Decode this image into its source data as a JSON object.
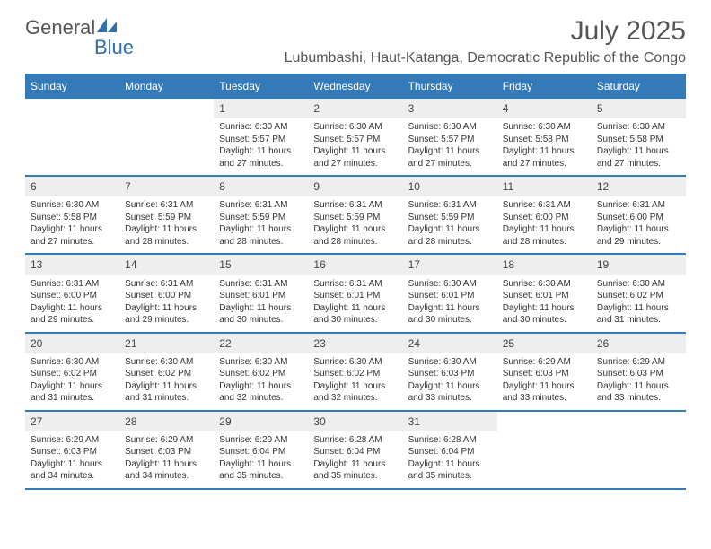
{
  "colors": {
    "header_bar": "#357ab8",
    "day_number_bg": "#eeeeee",
    "text": "#333333",
    "title_text": "#555555",
    "logo_gray": "#555555",
    "logo_blue": "#2f6fad",
    "background": "#ffffff"
  },
  "fonts": {
    "family": "Arial, Helvetica, sans-serif",
    "logo_size": 22,
    "month_title_size": 30,
    "location_size": 16,
    "weekday_size": 12,
    "day_number_size": 12,
    "body_size": 10
  },
  "logo": {
    "part1": "General",
    "part2": "Blue"
  },
  "header": {
    "month_title": "July 2025",
    "location": "Lubumbashi, Haut-Katanga, Democratic Republic of the Congo"
  },
  "calendar": {
    "type": "table",
    "columns": [
      "Sunday",
      "Monday",
      "Tuesday",
      "Wednesday",
      "Thursday",
      "Friday",
      "Saturday"
    ],
    "weeks": [
      [
        {
          "empty": true
        },
        {
          "empty": true
        },
        {
          "day": "1",
          "sunrise": "Sunrise: 6:30 AM",
          "sunset": "Sunset: 5:57 PM",
          "daylight1": "Daylight: 11 hours",
          "daylight2": "and 27 minutes."
        },
        {
          "day": "2",
          "sunrise": "Sunrise: 6:30 AM",
          "sunset": "Sunset: 5:57 PM",
          "daylight1": "Daylight: 11 hours",
          "daylight2": "and 27 minutes."
        },
        {
          "day": "3",
          "sunrise": "Sunrise: 6:30 AM",
          "sunset": "Sunset: 5:57 PM",
          "daylight1": "Daylight: 11 hours",
          "daylight2": "and 27 minutes."
        },
        {
          "day": "4",
          "sunrise": "Sunrise: 6:30 AM",
          "sunset": "Sunset: 5:58 PM",
          "daylight1": "Daylight: 11 hours",
          "daylight2": "and 27 minutes."
        },
        {
          "day": "5",
          "sunrise": "Sunrise: 6:30 AM",
          "sunset": "Sunset: 5:58 PM",
          "daylight1": "Daylight: 11 hours",
          "daylight2": "and 27 minutes."
        }
      ],
      [
        {
          "day": "6",
          "sunrise": "Sunrise: 6:30 AM",
          "sunset": "Sunset: 5:58 PM",
          "daylight1": "Daylight: 11 hours",
          "daylight2": "and 27 minutes."
        },
        {
          "day": "7",
          "sunrise": "Sunrise: 6:31 AM",
          "sunset": "Sunset: 5:59 PM",
          "daylight1": "Daylight: 11 hours",
          "daylight2": "and 28 minutes."
        },
        {
          "day": "8",
          "sunrise": "Sunrise: 6:31 AM",
          "sunset": "Sunset: 5:59 PM",
          "daylight1": "Daylight: 11 hours",
          "daylight2": "and 28 minutes."
        },
        {
          "day": "9",
          "sunrise": "Sunrise: 6:31 AM",
          "sunset": "Sunset: 5:59 PM",
          "daylight1": "Daylight: 11 hours",
          "daylight2": "and 28 minutes."
        },
        {
          "day": "10",
          "sunrise": "Sunrise: 6:31 AM",
          "sunset": "Sunset: 5:59 PM",
          "daylight1": "Daylight: 11 hours",
          "daylight2": "and 28 minutes."
        },
        {
          "day": "11",
          "sunrise": "Sunrise: 6:31 AM",
          "sunset": "Sunset: 6:00 PM",
          "daylight1": "Daylight: 11 hours",
          "daylight2": "and 28 minutes."
        },
        {
          "day": "12",
          "sunrise": "Sunrise: 6:31 AM",
          "sunset": "Sunset: 6:00 PM",
          "daylight1": "Daylight: 11 hours",
          "daylight2": "and 29 minutes."
        }
      ],
      [
        {
          "day": "13",
          "sunrise": "Sunrise: 6:31 AM",
          "sunset": "Sunset: 6:00 PM",
          "daylight1": "Daylight: 11 hours",
          "daylight2": "and 29 minutes."
        },
        {
          "day": "14",
          "sunrise": "Sunrise: 6:31 AM",
          "sunset": "Sunset: 6:00 PM",
          "daylight1": "Daylight: 11 hours",
          "daylight2": "and 29 minutes."
        },
        {
          "day": "15",
          "sunrise": "Sunrise: 6:31 AM",
          "sunset": "Sunset: 6:01 PM",
          "daylight1": "Daylight: 11 hours",
          "daylight2": "and 30 minutes."
        },
        {
          "day": "16",
          "sunrise": "Sunrise: 6:31 AM",
          "sunset": "Sunset: 6:01 PM",
          "daylight1": "Daylight: 11 hours",
          "daylight2": "and 30 minutes."
        },
        {
          "day": "17",
          "sunrise": "Sunrise: 6:30 AM",
          "sunset": "Sunset: 6:01 PM",
          "daylight1": "Daylight: 11 hours",
          "daylight2": "and 30 minutes."
        },
        {
          "day": "18",
          "sunrise": "Sunrise: 6:30 AM",
          "sunset": "Sunset: 6:01 PM",
          "daylight1": "Daylight: 11 hours",
          "daylight2": "and 30 minutes."
        },
        {
          "day": "19",
          "sunrise": "Sunrise: 6:30 AM",
          "sunset": "Sunset: 6:02 PM",
          "daylight1": "Daylight: 11 hours",
          "daylight2": "and 31 minutes."
        }
      ],
      [
        {
          "day": "20",
          "sunrise": "Sunrise: 6:30 AM",
          "sunset": "Sunset: 6:02 PM",
          "daylight1": "Daylight: 11 hours",
          "daylight2": "and 31 minutes."
        },
        {
          "day": "21",
          "sunrise": "Sunrise: 6:30 AM",
          "sunset": "Sunset: 6:02 PM",
          "daylight1": "Daylight: 11 hours",
          "daylight2": "and 31 minutes."
        },
        {
          "day": "22",
          "sunrise": "Sunrise: 6:30 AM",
          "sunset": "Sunset: 6:02 PM",
          "daylight1": "Daylight: 11 hours",
          "daylight2": "and 32 minutes."
        },
        {
          "day": "23",
          "sunrise": "Sunrise: 6:30 AM",
          "sunset": "Sunset: 6:02 PM",
          "daylight1": "Daylight: 11 hours",
          "daylight2": "and 32 minutes."
        },
        {
          "day": "24",
          "sunrise": "Sunrise: 6:30 AM",
          "sunset": "Sunset: 6:03 PM",
          "daylight1": "Daylight: 11 hours",
          "daylight2": "and 33 minutes."
        },
        {
          "day": "25",
          "sunrise": "Sunrise: 6:29 AM",
          "sunset": "Sunset: 6:03 PM",
          "daylight1": "Daylight: 11 hours",
          "daylight2": "and 33 minutes."
        },
        {
          "day": "26",
          "sunrise": "Sunrise: 6:29 AM",
          "sunset": "Sunset: 6:03 PM",
          "daylight1": "Daylight: 11 hours",
          "daylight2": "and 33 minutes."
        }
      ],
      [
        {
          "day": "27",
          "sunrise": "Sunrise: 6:29 AM",
          "sunset": "Sunset: 6:03 PM",
          "daylight1": "Daylight: 11 hours",
          "daylight2": "and 34 minutes."
        },
        {
          "day": "28",
          "sunrise": "Sunrise: 6:29 AM",
          "sunset": "Sunset: 6:03 PM",
          "daylight1": "Daylight: 11 hours",
          "daylight2": "and 34 minutes."
        },
        {
          "day": "29",
          "sunrise": "Sunrise: 6:29 AM",
          "sunset": "Sunset: 6:04 PM",
          "daylight1": "Daylight: 11 hours",
          "daylight2": "and 35 minutes."
        },
        {
          "day": "30",
          "sunrise": "Sunrise: 6:28 AM",
          "sunset": "Sunset: 6:04 PM",
          "daylight1": "Daylight: 11 hours",
          "daylight2": "and 35 minutes."
        },
        {
          "day": "31",
          "sunrise": "Sunrise: 6:28 AM",
          "sunset": "Sunset: 6:04 PM",
          "daylight1": "Daylight: 11 hours",
          "daylight2": "and 35 minutes."
        },
        {
          "empty": true
        },
        {
          "empty": true
        }
      ]
    ]
  }
}
